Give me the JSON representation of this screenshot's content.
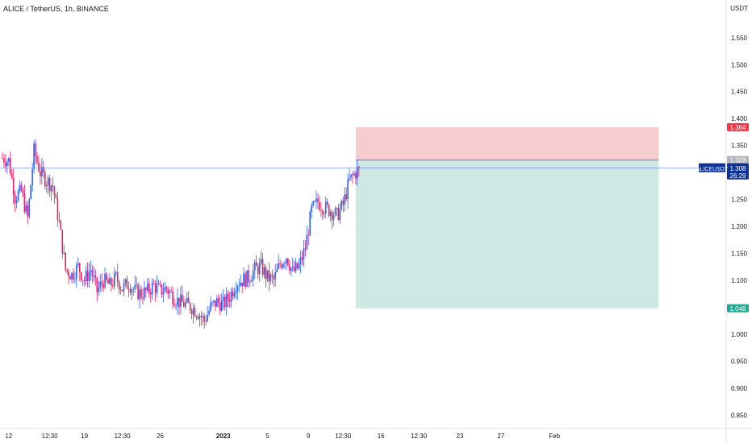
{
  "header": {
    "title": "ALICE / TetherUS, 1h, BINANCE"
  },
  "colors": {
    "up": "#2962ff",
    "down": "#e91e63",
    "stop_zone": "#f7cccf",
    "target_zone": "#cce9e3",
    "stop_badge": "#f23645",
    "target_badge": "#22ab94",
    "entry_badge": "#b2b5be",
    "symbol_badge": "#0c3299",
    "price_line": "#6f8ee8"
  },
  "chart_data": {
    "type": "candlestick",
    "symbol": "ALICEUSDT",
    "interval": "1h",
    "exchange": "BINANCE",
    "currency": "USDT",
    "ylim": [
      0.825,
      1.605
    ],
    "y_ticks": [
      "1.550",
      "1.500",
      "1.450",
      "1.400",
      "1.350",
      "1.300",
      "1.250",
      "1.200",
      "1.150",
      "1.100",
      "1.050",
      "1.000",
      "0.950",
      "0.900",
      "0.850"
    ],
    "y_tick_values": [
      1.55,
      1.5,
      1.45,
      1.4,
      1.35,
      1.3,
      1.25,
      1.2,
      1.15,
      1.1,
      1.05,
      1.0,
      0.95,
      0.9,
      0.85
    ],
    "x_ticks": [
      {
        "label": "12",
        "bold": false
      },
      {
        "label": "12:30",
        "bold": false
      },
      {
        "label": "19",
        "bold": false
      },
      {
        "label": "12:30",
        "bold": false
      },
      {
        "label": "26",
        "bold": false
      },
      {
        "label": "2023",
        "bold": true
      },
      {
        "label": "5",
        "bold": false
      },
      {
        "label": "9",
        "bold": false
      },
      {
        "label": "12:30",
        "bold": false
      },
      {
        "label": "16",
        "bold": false
      },
      {
        "label": "12:30",
        "bold": false
      },
      {
        "label": "23",
        "bold": false
      },
      {
        "label": "27",
        "bold": false
      },
      {
        "label": "Feb",
        "bold": false
      }
    ],
    "x_tick_index": [
      2,
      15,
      26,
      38,
      50,
      70,
      84,
      97,
      108,
      120,
      132,
      145,
      158,
      175
    ],
    "price_path": [
      [
        0,
        1.327
      ],
      [
        2,
        1.322
      ],
      [
        4,
        1.255
      ],
      [
        6,
        1.265
      ],
      [
        8,
        1.215
      ],
      [
        10,
        1.34
      ],
      [
        12,
        1.3
      ],
      [
        14,
        1.285
      ],
      [
        16,
        1.275
      ],
      [
        18,
        1.205
      ],
      [
        20,
        1.12
      ],
      [
        22,
        1.11
      ],
      [
        24,
        1.125
      ],
      [
        26,
        1.1
      ],
      [
        28,
        1.12
      ],
      [
        30,
        1.08
      ],
      [
        32,
        1.1
      ],
      [
        34,
        1.09
      ],
      [
        36,
        1.105
      ],
      [
        38,
        1.085
      ],
      [
        40,
        1.095
      ],
      [
        42,
        1.08
      ],
      [
        44,
        1.075
      ],
      [
        46,
        1.08
      ],
      [
        48,
        1.09
      ],
      [
        50,
        1.08
      ],
      [
        52,
        1.085
      ],
      [
        54,
        1.07
      ],
      [
        56,
        1.06
      ],
      [
        58,
        1.055
      ],
      [
        60,
        1.05
      ],
      [
        62,
        1.04
      ],
      [
        64,
        1.025
      ],
      [
        66,
        1.05
      ],
      [
        68,
        1.06
      ],
      [
        70,
        1.055
      ],
      [
        72,
        1.07
      ],
      [
        74,
        1.095
      ],
      [
        76,
        1.1
      ],
      [
        78,
        1.105
      ],
      [
        80,
        1.12
      ],
      [
        82,
        1.125
      ],
      [
        84,
        1.105
      ],
      [
        86,
        1.1
      ],
      [
        88,
        1.13
      ],
      [
        90,
        1.145
      ],
      [
        92,
        1.115
      ],
      [
        94,
        1.125
      ],
      [
        96,
        1.16
      ],
      [
        98,
        1.23
      ],
      [
        100,
        1.245
      ],
      [
        102,
        1.235
      ],
      [
        104,
        1.23
      ],
      [
        106,
        1.22
      ],
      [
        108,
        1.24
      ],
      [
        110,
        1.285
      ],
      [
        112,
        1.3
      ],
      [
        113,
        1.308
      ]
    ],
    "last_price": "1.308",
    "countdown": "26:29",
    "position": {
      "type": "short",
      "entry": 1.323,
      "stop": 1.384,
      "target": 1.048,
      "entry_label": "1.323",
      "stop_label": "1.384",
      "target_label": "1.048",
      "start_index": 112,
      "end_index": 208
    },
    "grid": false,
    "legend": "none"
  }
}
